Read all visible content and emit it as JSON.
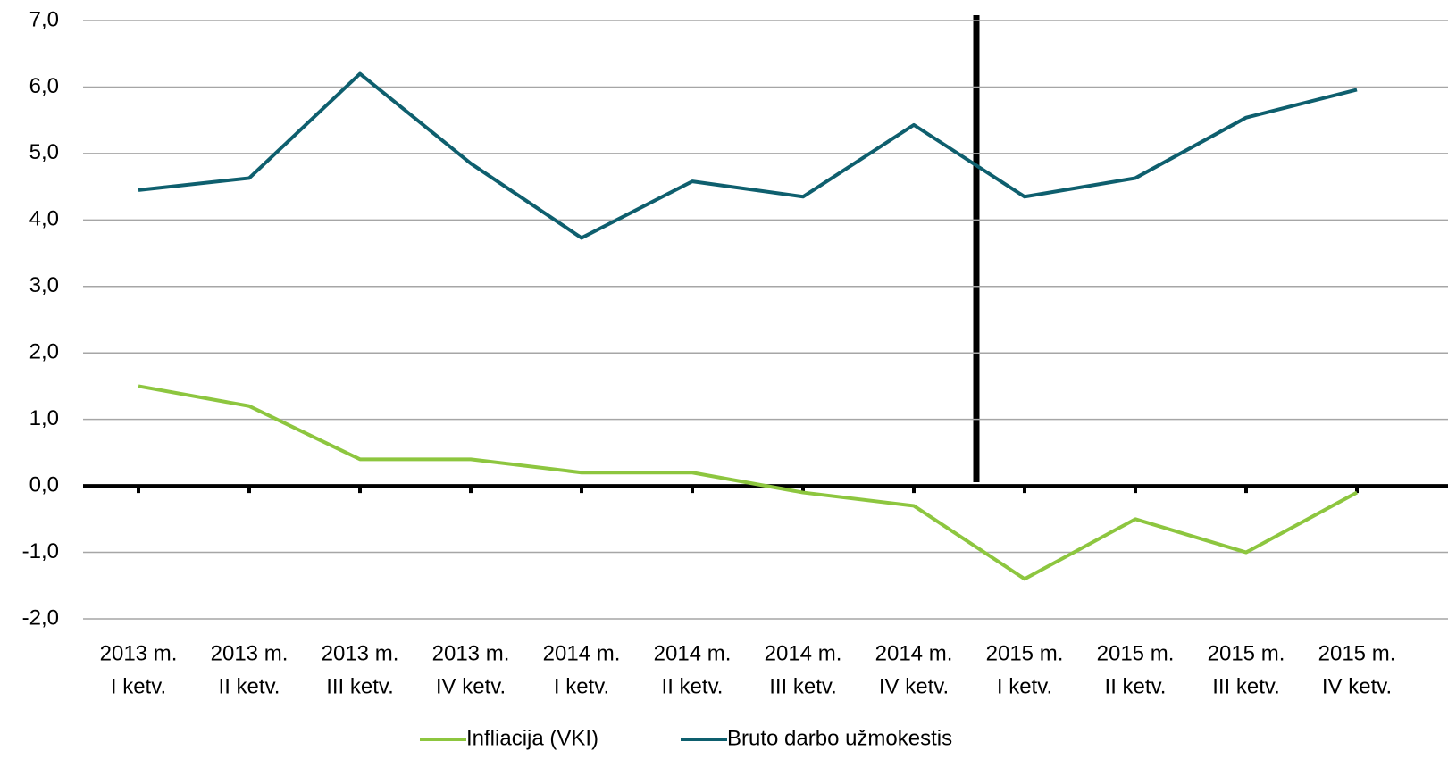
{
  "chart_data": {
    "type": "line",
    "categories": [
      [
        "2013 m.",
        "I ketv."
      ],
      [
        "2013 m.",
        "II ketv."
      ],
      [
        "2013 m.",
        "III ketv."
      ],
      [
        "2013 m.",
        "IV ketv."
      ],
      [
        "2014 m.",
        "I ketv."
      ],
      [
        "2014 m.",
        "II ketv."
      ],
      [
        "2014 m.",
        "III ketv."
      ],
      [
        "2014 m.",
        "IV ketv."
      ],
      [
        "2015 m.",
        "I ketv."
      ],
      [
        "2015 m.",
        "II ketv."
      ],
      [
        "2015 m.",
        "III ketv."
      ],
      [
        "2015 m.",
        "IV ketv."
      ]
    ],
    "series": [
      {
        "name": "Infliacija (VKI)",
        "color": "#8dc63f",
        "values": [
          1.5,
          1.2,
          0.4,
          0.4,
          0.2,
          0.2,
          -0.1,
          -0.3,
          -1.4,
          -0.5,
          -1.0,
          -0.1
        ]
      },
      {
        "name": "Bruto darbo užmokestis",
        "color": "#0e5f6e",
        "values": [
          4.45,
          4.63,
          6.2,
          4.85,
          3.73,
          4.58,
          4.35,
          5.43,
          4.35,
          4.63,
          5.54,
          5.96
        ]
      }
    ],
    "ylim": [
      -2,
      7
    ],
    "yticks": [
      {
        "value": -2,
        "label": "-2,0"
      },
      {
        "value": -1,
        "label": "-1,0"
      },
      {
        "value": 0,
        "label": "0,0"
      },
      {
        "value": 1,
        "label": "1,0"
      },
      {
        "value": 2,
        "label": "2,0"
      },
      {
        "value": 3,
        "label": "3,0"
      },
      {
        "value": 4,
        "label": "4,0"
      },
      {
        "value": 5,
        "label": "5,0"
      },
      {
        "value": 6,
        "label": "6,0"
      },
      {
        "value": 7,
        "label": "7,0"
      }
    ],
    "grid": true,
    "legend": "bottom"
  }
}
